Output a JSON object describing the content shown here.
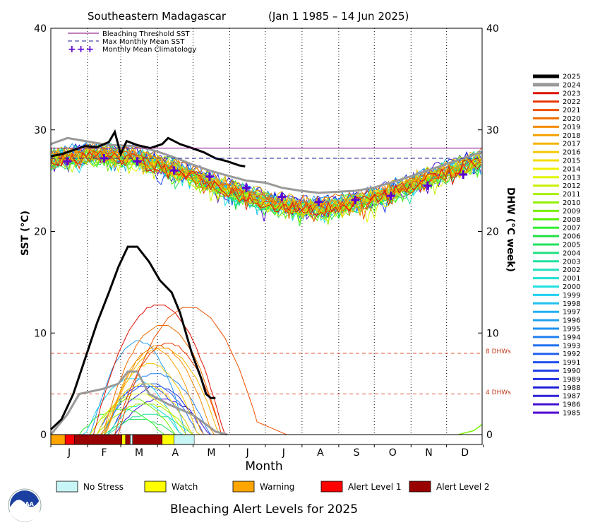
{
  "header": {
    "location": "Southeastern Madagascar",
    "period": "(Jan 1 1985 – 14 Jun 2025)"
  },
  "axes": {
    "xlabel": "Month",
    "ylabel_left": "SST (°C)",
    "ylabel_right": "DHW (°C week)",
    "yticks": [
      "0",
      "10",
      "20",
      "30",
      "40"
    ],
    "months": [
      "J",
      "F",
      "M",
      "A",
      "M",
      "J",
      "J",
      "A",
      "S",
      "O",
      "N",
      "D"
    ]
  },
  "legend": {
    "threshold": "Bleaching Threshold SST",
    "mms": "Max Monthly Mean SST",
    "clim": "Monthly Mean Climatology",
    "clim_symbol": "+++"
  },
  "dhw_refs": {
    "eight": "8 DHWs",
    "four": "4 DHWs"
  },
  "alert_legend": [
    {
      "label": "No Stress",
      "color": "#c8f5f5"
    },
    {
      "label": "Watch",
      "color": "#ffff00"
    },
    {
      "label": "Warning",
      "color": "#ffa500"
    },
    {
      "label": "Alert Level 1",
      "color": "#ff0000"
    },
    {
      "label": "Alert Level 2",
      "color": "#990000"
    }
  ],
  "bottom_title": "Bleaching Alert Levels for 2025",
  "colors": {
    "threshold": "#800080",
    "mms": "#1e1e96",
    "clim": "#5a00d2",
    "dhw_ref": "#e05030"
  },
  "chart_data": {
    "type": "line",
    "title": "Southeastern Madagascar",
    "ylim": [
      0,
      40
    ],
    "xlim": [
      1,
      365
    ],
    "bleaching_threshold_sst": 28.2,
    "max_monthly_mean_sst": 27.2,
    "monthly_mean_climatology": [
      {
        "x": 15,
        "y": 26.9
      },
      {
        "x": 46,
        "y": 27.2
      },
      {
        "x": 74,
        "y": 26.9
      },
      {
        "x": 105,
        "y": 26.0
      },
      {
        "x": 135,
        "y": 25.4
      },
      {
        "x": 166,
        "y": 24.3
      },
      {
        "x": 196,
        "y": 23.4
      },
      {
        "x": 227,
        "y": 22.9
      },
      {
        "x": 258,
        "y": 23.1
      },
      {
        "x": 288,
        "y": 23.5
      },
      {
        "x": 319,
        "y": 24.5
      },
      {
        "x": 349,
        "y": 25.6
      }
    ],
    "year_labels": [
      "2025",
      "2024",
      "2023",
      "2022",
      "2021",
      "2020",
      "2019",
      "2018",
      "2017",
      "2016",
      "2015",
      "2014",
      "2013",
      "2012",
      "2011",
      "2010",
      "2009",
      "2008",
      "2007",
      "2006",
      "2005",
      "2004",
      "2003",
      "2002",
      "2001",
      "2000",
      "1999",
      "1998",
      "1997",
      "1996",
      "1995",
      "1994",
      "1993",
      "1992",
      "1991",
      "1990",
      "1989",
      "1988",
      "1987",
      "1986",
      "1985"
    ],
    "year_colors": [
      "#000000",
      "#999999",
      "#e01000",
      "#e83800",
      "#f05000",
      "#f07000",
      "#f58a00",
      "#f5a000",
      "#f5b400",
      "#f5c800",
      "#f5dc00",
      "#f0f000",
      "#e0f500",
      "#c8f000",
      "#a8f000",
      "#90f000",
      "#78f000",
      "#50f000",
      "#30f030",
      "#20e040",
      "#20e060",
      "#20e080",
      "#20e0a0",
      "#20e0c0",
      "#20e0d0",
      "#20e0e0",
      "#20d0f0",
      "#20c0f0",
      "#20b0f0",
      "#20a0f0",
      "#2090f0",
      "#2080f0",
      "#2070f0",
      "#2060f0",
      "#2050f0",
      "#2040e8",
      "#2030e0",
      "#2020d8",
      "#3020d8",
      "#4010d0",
      "#5000d0"
    ],
    "dhw_reference_levels": [
      4,
      8
    ],
    "sst_2025": [
      {
        "x": 1,
        "y": 27.4
      },
      {
        "x": 10,
        "y": 27.6
      },
      {
        "x": 20,
        "y": 28.0
      },
      {
        "x": 30,
        "y": 28.4
      },
      {
        "x": 40,
        "y": 28.3
      },
      {
        "x": 50,
        "y": 28.8
      },
      {
        "x": 55,
        "y": 29.8
      },
      {
        "x": 60,
        "y": 27.6
      },
      {
        "x": 65,
        "y": 28.9
      },
      {
        "x": 74,
        "y": 28.5
      },
      {
        "x": 85,
        "y": 28.2
      },
      {
        "x": 95,
        "y": 28.6
      },
      {
        "x": 100,
        "y": 29.2
      },
      {
        "x": 110,
        "y": 28.6
      },
      {
        "x": 120,
        "y": 28.2
      },
      {
        "x": 130,
        "y": 27.8
      },
      {
        "x": 140,
        "y": 27.2
      },
      {
        "x": 150,
        "y": 26.9
      },
      {
        "x": 160,
        "y": 26.5
      },
      {
        "x": 165,
        "y": 26.4
      }
    ],
    "sst_2024": [
      {
        "x": 1,
        "y": 28.6
      },
      {
        "x": 15,
        "y": 29.2
      },
      {
        "x": 30,
        "y": 28.9
      },
      {
        "x": 50,
        "y": 28.5
      },
      {
        "x": 74,
        "y": 28.4
      },
      {
        "x": 90,
        "y": 27.9
      },
      {
        "x": 105,
        "y": 27.3
      },
      {
        "x": 120,
        "y": 26.6
      },
      {
        "x": 135,
        "y": 26.0
      },
      {
        "x": 150,
        "y": 25.5
      },
      {
        "x": 166,
        "y": 25.0
      },
      {
        "x": 182,
        "y": 24.8
      },
      {
        "x": 196,
        "y": 24.3
      },
      {
        "x": 212,
        "y": 24.0
      },
      {
        "x": 227,
        "y": 23.8
      },
      {
        "x": 243,
        "y": 23.9
      },
      {
        "x": 258,
        "y": 24.0
      },
      {
        "x": 273,
        "y": 24.3
      },
      {
        "x": 288,
        "y": 24.8
      },
      {
        "x": 304,
        "y": 25.4
      },
      {
        "x": 319,
        "y": 26.0
      },
      {
        "x": 334,
        "y": 26.6
      },
      {
        "x": 349,
        "y": 27.2
      },
      {
        "x": 365,
        "y": 27.8
      }
    ],
    "dhw_2025": [
      {
        "x": 1,
        "y": 0.5
      },
      {
        "x": 10,
        "y": 1.5
      },
      {
        "x": 20,
        "y": 4
      },
      {
        "x": 30,
        "y": 7.5
      },
      {
        "x": 40,
        "y": 11
      },
      {
        "x": 50,
        "y": 14
      },
      {
        "x": 58,
        "y": 16.5
      },
      {
        "x": 66,
        "y": 18.5
      },
      {
        "x": 74,
        "y": 18.5
      },
      {
        "x": 84,
        "y": 17
      },
      {
        "x": 93,
        "y": 15.2
      },
      {
        "x": 103,
        "y": 14
      },
      {
        "x": 110,
        "y": 12
      },
      {
        "x": 120,
        "y": 8
      },
      {
        "x": 128,
        "y": 5.5
      },
      {
        "x": 132,
        "y": 4
      },
      {
        "x": 136,
        "y": 3.6
      },
      {
        "x": 140,
        "y": 3.6
      }
    ],
    "dhw_2024": [
      {
        "x": 1,
        "y": 0
      },
      {
        "x": 15,
        "y": 2
      },
      {
        "x": 25,
        "y": 4
      },
      {
        "x": 45,
        "y": 4.5
      },
      {
        "x": 58,
        "y": 5
      },
      {
        "x": 66,
        "y": 6.2
      },
      {
        "x": 74,
        "y": 6.2
      },
      {
        "x": 84,
        "y": 4
      },
      {
        "x": 100,
        "y": 3
      },
      {
        "x": 120,
        "y": 2
      },
      {
        "x": 132,
        "y": 1
      },
      {
        "x": 140,
        "y": 0.3
      },
      {
        "x": 150,
        "y": 0
      }
    ],
    "alert_bar_2025": [
      {
        "from": 1,
        "to": 13,
        "level": "Warning"
      },
      {
        "from": 13,
        "to": 21,
        "level": "Alert Level 1"
      },
      {
        "from": 21,
        "to": 61,
        "level": "Alert Level 2"
      },
      {
        "from": 61,
        "to": 64,
        "level": "Watch"
      },
      {
        "from": 64,
        "to": 68,
        "level": "Alert Level 2"
      },
      {
        "from": 68,
        "to": 70,
        "level": "No Stress"
      },
      {
        "from": 70,
        "to": 95,
        "level": "Alert Level 2"
      },
      {
        "from": 95,
        "to": 105,
        "level": "Watch"
      },
      {
        "from": 105,
        "to": 122,
        "level": "No Stress"
      }
    ]
  }
}
